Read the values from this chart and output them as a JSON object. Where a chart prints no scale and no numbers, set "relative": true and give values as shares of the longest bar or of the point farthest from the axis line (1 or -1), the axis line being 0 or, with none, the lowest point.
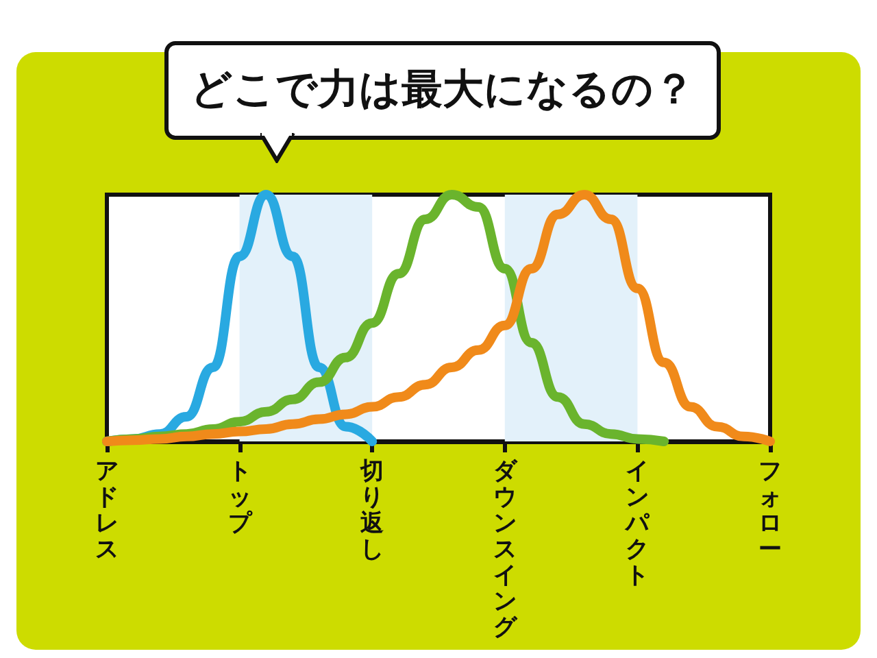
{
  "chart_data": {
    "type": "line",
    "title": "どこで力は最大になるの？",
    "relative": true,
    "grid": false,
    "line_style": "solid",
    "categories": [
      "アドレス",
      null,
      null,
      null,
      null,
      "トップ",
      null,
      null,
      null,
      null,
      "切り返し",
      null,
      null,
      null,
      null,
      "ダウンスイング",
      null,
      null,
      null,
      null,
      "インパクト",
      null,
      null,
      null,
      null,
      "フォロー"
    ],
    "bands": [
      {
        "axis": "x",
        "from": "トップ",
        "to": "切り返し",
        "color": "#e3f1fa"
      },
      {
        "axis": "x",
        "from": "ダウンスイング",
        "to": "インパクト",
        "color": "#e3f1fa"
      }
    ],
    "series": [
      {
        "color": "#29a9e1",
        "values": [
          0,
          0.01,
          0.03,
          0.1,
          0.3,
          0.75,
          1.0,
          0.75,
          0.3,
          0.06,
          0,
          null,
          null,
          null,
          null,
          null,
          null,
          null,
          null,
          null,
          null,
          null,
          null,
          null,
          null,
          null
        ]
      },
      {
        "color": "#6ab42d",
        "values": [
          0,
          0.01,
          0.02,
          0.03,
          0.05,
          0.08,
          0.12,
          0.17,
          0.24,
          0.34,
          0.48,
          0.68,
          0.9,
          1.0,
          0.95,
          0.7,
          0.4,
          0.18,
          0.07,
          0.03,
          0.01,
          0,
          null,
          null,
          null,
          null
        ]
      },
      {
        "color": "#f08a1a",
        "values": [
          0,
          0.005,
          0.01,
          0.02,
          0.03,
          0.04,
          0.05,
          0.07,
          0.09,
          0.11,
          0.14,
          0.18,
          0.23,
          0.3,
          0.37,
          0.47,
          0.7,
          0.92,
          1.0,
          0.9,
          0.62,
          0.32,
          0.14,
          0.06,
          0.02,
          0
        ]
      }
    ]
  }
}
